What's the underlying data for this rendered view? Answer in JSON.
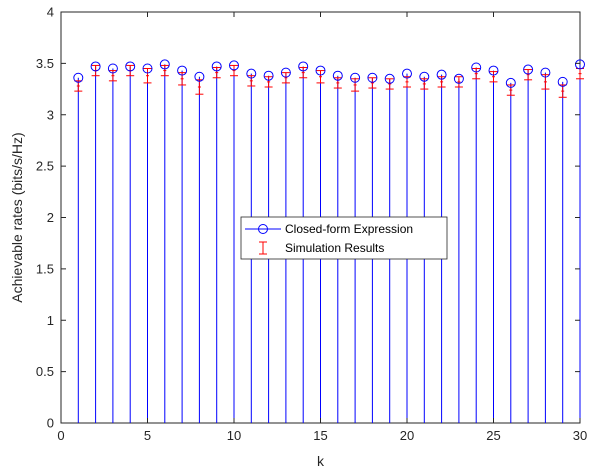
{
  "chart_data": {
    "type": "stem",
    "xlabel": "k",
    "ylabel": "Achievable rates (bits/s/Hz)",
    "xlim": [
      0,
      30
    ],
    "ylim": [
      0,
      4
    ],
    "xticks": [
      "0",
      "5",
      "10",
      "15",
      "20",
      "25",
      "30"
    ],
    "yticks": [
      "0",
      "0.5",
      "1",
      "1.5",
      "2",
      "2.5",
      "3",
      "3.5",
      "4"
    ],
    "grid": false,
    "legend_position": "center",
    "x": [
      1,
      2,
      3,
      4,
      5,
      6,
      7,
      8,
      9,
      10,
      11,
      12,
      13,
      14,
      15,
      16,
      17,
      18,
      19,
      20,
      21,
      22,
      23,
      24,
      25,
      26,
      27,
      28,
      29,
      30
    ],
    "series": [
      {
        "name": "Closed-form Expression",
        "style": "stem-circle",
        "color": "#0000ff",
        "values": [
          3.36,
          3.47,
          3.45,
          3.47,
          3.45,
          3.49,
          3.43,
          3.37,
          3.47,
          3.48,
          3.4,
          3.38,
          3.41,
          3.47,
          3.43,
          3.38,
          3.36,
          3.36,
          3.35,
          3.4,
          3.37,
          3.39,
          3.35,
          3.46,
          3.43,
          3.31,
          3.44,
          3.41,
          3.32,
          3.49
        ]
      },
      {
        "name": "Simulation Results",
        "style": "errorbar",
        "color": "#ff0000",
        "values": [
          3.28,
          3.43,
          3.38,
          3.43,
          3.38,
          3.43,
          3.35,
          3.27,
          3.41,
          3.43,
          3.33,
          3.32,
          3.36,
          3.41,
          3.37,
          3.31,
          3.29,
          3.31,
          3.3,
          3.32,
          3.3,
          3.32,
          3.32,
          3.4,
          3.37,
          3.24,
          3.39,
          3.32,
          3.23,
          3.4
        ],
        "error": [
          0.05,
          0.05,
          0.05,
          0.05,
          0.07,
          0.05,
          0.06,
          0.07,
          0.05,
          0.05,
          0.05,
          0.05,
          0.05,
          0.05,
          0.06,
          0.05,
          0.06,
          0.05,
          0.05,
          0.05,
          0.05,
          0.05,
          0.05,
          0.05,
          0.05,
          0.05,
          0.05,
          0.07,
          0.06,
          0.05
        ]
      }
    ]
  }
}
